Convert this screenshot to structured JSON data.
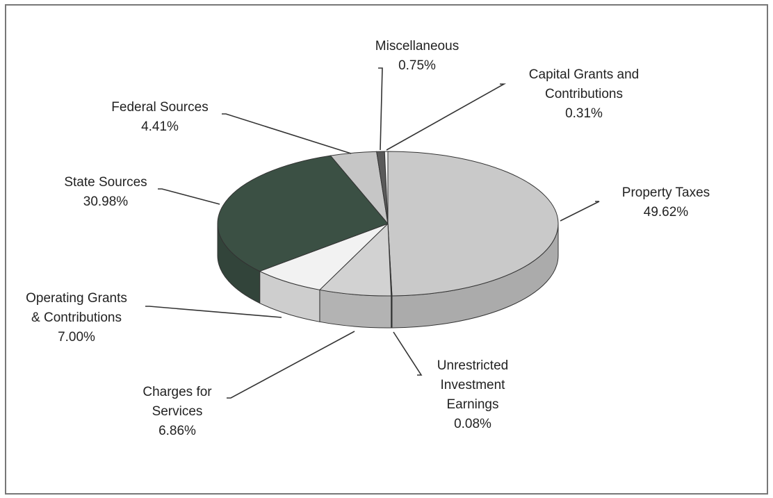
{
  "chart_data": {
    "type": "pie3d",
    "categories": [
      "Property Taxes",
      "Unrestricted\nInvestment\nEarnings",
      "Charges for\nServices",
      "Operating Grants\n& Contributions",
      "State Sources",
      "Federal Sources",
      "Miscellaneous",
      "Capital Grants and\nContributions"
    ],
    "values": [
      49.62,
      0.08,
      6.86,
      7.0,
      30.98,
      4.41,
      0.75,
      0.31
    ],
    "value_labels": [
      "49.62%",
      "0.08%",
      "6.86%",
      "7.00%",
      "30.98%",
      "4.41%",
      "0.75%",
      "0.31%"
    ],
    "colors": [
      "#c9c9c9",
      "#3f4f45",
      "#d2d2d2",
      "#f2f2f2",
      "#3b5044",
      "#c6c6c6",
      "#5a5a5a",
      "#f5f5f5"
    ]
  }
}
